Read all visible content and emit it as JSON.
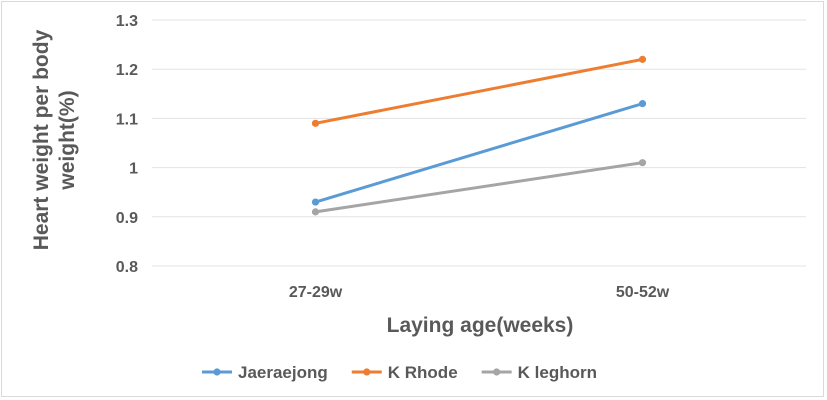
{
  "chart_data": {
    "type": "line",
    "title": "",
    "xlabel": "Laying age(weeks)",
    "ylabel_lines": [
      "Heart weight per body",
      "weight(%)"
    ],
    "categories": [
      "27-29w",
      "50-52w"
    ],
    "ylim": [
      0.8,
      1.3
    ],
    "yticks": [
      0.8,
      0.9,
      1,
      1.1,
      1.2,
      1.3
    ],
    "ytick_labels": [
      "0.8",
      "0.9",
      "1",
      "1.1",
      "1.2",
      "1.3"
    ],
    "grid": true,
    "legend_position": "bottom",
    "series": [
      {
        "name": "Jaeraejong",
        "values": [
          0.93,
          1.13
        ],
        "color": "#5b9bd5"
      },
      {
        "name": "K Rhode",
        "values": [
          1.09,
          1.22
        ],
        "color": "#ed7d31"
      },
      {
        "name": "K leghorn",
        "values": [
          0.91,
          1.01
        ],
        "color": "#a5a5a5"
      }
    ]
  }
}
